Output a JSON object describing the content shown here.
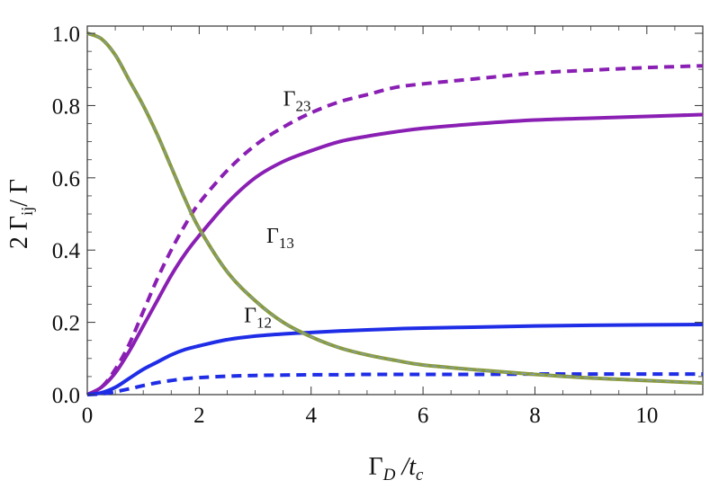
{
  "chart_data": {
    "type": "line",
    "xlabel": {
      "main": "Γ",
      "sub": "D",
      "rest": " /t",
      "rest_sub": "c"
    },
    "ylabel": {
      "pre": "2 Γ",
      "sub": "ij",
      "post": "/ Γ"
    },
    "xlim": [
      0,
      11
    ],
    "ylim": [
      0,
      1.02
    ],
    "xticks": [
      0,
      2,
      4,
      6,
      8,
      10
    ],
    "xtick_labels": [
      "0",
      "2",
      "4",
      "6",
      "8",
      "10"
    ],
    "yticks": [
      0.0,
      0.2,
      0.4,
      0.6,
      0.8,
      1.0
    ],
    "ytick_labels": [
      "0.0",
      "0.2",
      "0.4",
      "0.6",
      "0.8",
      "1.0"
    ],
    "grid": false,
    "x": [
      0,
      0.25,
      0.5,
      0.75,
      1,
      1.25,
      1.5,
      1.75,
      2,
      2.5,
      3,
      3.5,
      4,
      4.5,
      5,
      5.5,
      6,
      7,
      8,
      9,
      10,
      11
    ],
    "series": [
      {
        "key": "g23",
        "color": "#8a1fb3",
        "dash": true,
        "values": [
          0,
          0.02,
          0.07,
          0.14,
          0.23,
          0.32,
          0.4,
          0.47,
          0.53,
          0.62,
          0.69,
          0.74,
          0.78,
          0.81,
          0.83,
          0.85,
          0.86,
          0.875,
          0.89,
          0.898,
          0.905,
          0.91
        ]
      },
      {
        "key": "g13",
        "color": "#8a1fb3",
        "dash": false,
        "values": [
          0,
          0.02,
          0.06,
          0.12,
          0.19,
          0.26,
          0.33,
          0.39,
          0.44,
          0.53,
          0.6,
          0.645,
          0.675,
          0.7,
          0.715,
          0.727,
          0.737,
          0.75,
          0.76,
          0.765,
          0.77,
          0.775
        ]
      },
      {
        "key": "g12",
        "color": "#1f2de6",
        "dash": false,
        "values": [
          0,
          0.005,
          0.02,
          0.045,
          0.07,
          0.09,
          0.11,
          0.125,
          0.135,
          0.152,
          0.162,
          0.168,
          0.172,
          0.176,
          0.179,
          0.182,
          0.184,
          0.187,
          0.19,
          0.192,
          0.193,
          0.194
        ]
      },
      {
        "key": "g12d",
        "color": "#1f2de6",
        "dash": true,
        "values": [
          0,
          0.002,
          0.008,
          0.016,
          0.025,
          0.033,
          0.039,
          0.044,
          0.047,
          0.051,
          0.053,
          0.054,
          0.055,
          0.055,
          0.056,
          0.056,
          0.056,
          0.056,
          0.057,
          0.057,
          0.057,
          0.057
        ]
      },
      {
        "key": "decay",
        "color": "#8a9a3a",
        "dash": false,
        "values": [
          1.0,
          0.985,
          0.94,
          0.87,
          0.8,
          0.72,
          0.63,
          0.54,
          0.46,
          0.34,
          0.26,
          0.2,
          0.16,
          0.13,
          0.11,
          0.095,
          0.082,
          0.068,
          0.056,
          0.046,
          0.039,
          0.032
        ]
      }
    ],
    "annotations": [
      {
        "main": "Γ",
        "sub": "23",
        "x": 3.5,
        "y": 0.8
      },
      {
        "main": "Γ",
        "sub": "13",
        "x": 3.2,
        "y": 0.42
      },
      {
        "main": "Γ",
        "sub": "12",
        "x": 2.8,
        "y": 0.2
      }
    ]
  }
}
